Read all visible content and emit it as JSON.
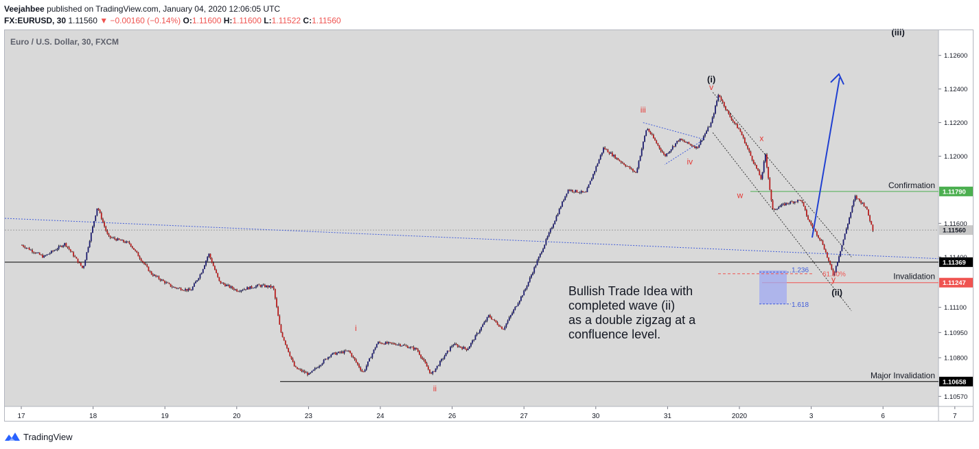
{
  "header": {
    "author": "Veejahbee",
    "published": "published on TradingView.com, January 04, 2020 12:06:05 UTC",
    "symbol": "FX:EURUSD, 30",
    "last": "1.11560",
    "change": "▼ −0.00160 (−0.14%)",
    "o_label": "O:",
    "o": "1.11600",
    "h_label": "H:",
    "h": "1.11600",
    "l_label": "L:",
    "l": "1.11522",
    "c_label": "C:",
    "c": "1.11560"
  },
  "chart_title": "Euro / U.S. Dollar, 30, FXCM",
  "chart_data": {
    "type": "candlestick",
    "y_ticks": [
      "1.12600",
      "1.12400",
      "1.12200",
      "1.12000",
      "1.11600",
      "1.11400",
      "1.11100",
      "1.10950",
      "1.10800",
      "1.10570"
    ],
    "ylim": [
      1.1051,
      1.1275
    ],
    "x_ticks": [
      "17",
      "18",
      "19",
      "20",
      "23",
      "24",
      "26",
      "27",
      "30",
      "31",
      "2020",
      "3",
      "6",
      "7"
    ],
    "price_path": [
      {
        "x": 0.0,
        "y": 1.1147
      },
      {
        "x": 0.3,
        "y": 1.114
      },
      {
        "x": 0.6,
        "y": 1.1148
      },
      {
        "x": 0.85,
        "y": 1.1133
      },
      {
        "x": 1.05,
        "y": 1.117
      },
      {
        "x": 1.2,
        "y": 1.1152
      },
      {
        "x": 1.5,
        "y": 1.1148
      },
      {
        "x": 1.8,
        "y": 1.113
      },
      {
        "x": 2.1,
        "y": 1.1122
      },
      {
        "x": 2.35,
        "y": 1.112
      },
      {
        "x": 2.5,
        "y": 1.1131
      },
      {
        "x": 2.6,
        "y": 1.1142
      },
      {
        "x": 2.75,
        "y": 1.1125
      },
      {
        "x": 3.0,
        "y": 1.112
      },
      {
        "x": 3.3,
        "y": 1.1123
      },
      {
        "x": 3.5,
        "y": 1.1122
      },
      {
        "x": 3.6,
        "y": 1.1096
      },
      {
        "x": 3.8,
        "y": 1.1074
      },
      {
        "x": 4.0,
        "y": 1.107
      },
      {
        "x": 4.3,
        "y": 1.1082
      },
      {
        "x": 4.55,
        "y": 1.1084
      },
      {
        "x": 4.75,
        "y": 1.1071
      },
      {
        "x": 4.95,
        "y": 1.1089
      },
      {
        "x": 5.25,
        "y": 1.1088
      },
      {
        "x": 5.5,
        "y": 1.1085
      },
      {
        "x": 5.7,
        "y": 1.107
      },
      {
        "x": 6.0,
        "y": 1.1088
      },
      {
        "x": 6.2,
        "y": 1.1085
      },
      {
        "x": 6.5,
        "y": 1.1105
      },
      {
        "x": 6.7,
        "y": 1.1097
      },
      {
        "x": 7.0,
        "y": 1.112
      },
      {
        "x": 7.3,
        "y": 1.115
      },
      {
        "x": 7.6,
        "y": 1.118
      },
      {
        "x": 7.85,
        "y": 1.1178
      },
      {
        "x": 8.1,
        "y": 1.1205
      },
      {
        "x": 8.3,
        "y": 1.1198
      },
      {
        "x": 8.55,
        "y": 1.119
      },
      {
        "x": 8.7,
        "y": 1.1217
      },
      {
        "x": 8.95,
        "y": 1.12
      },
      {
        "x": 9.15,
        "y": 1.121
      },
      {
        "x": 9.4,
        "y": 1.1205
      },
      {
        "x": 9.6,
        "y": 1.122
      },
      {
        "x": 9.7,
        "y": 1.1237
      },
      {
        "x": 9.85,
        "y": 1.1224
      },
      {
        "x": 10.0,
        "y": 1.1215
      },
      {
        "x": 10.15,
        "y": 1.12
      },
      {
        "x": 10.3,
        "y": 1.1186
      },
      {
        "x": 10.35,
        "y": 1.1202
      },
      {
        "x": 10.45,
        "y": 1.1168
      },
      {
        "x": 10.65,
        "y": 1.1172
      },
      {
        "x": 10.85,
        "y": 1.1174
      },
      {
        "x": 10.95,
        "y": 1.1162
      },
      {
        "x": 11.15,
        "y": 1.1148
      },
      {
        "x": 11.3,
        "y": 1.1129
      },
      {
        "x": 11.45,
        "y": 1.1152
      },
      {
        "x": 11.6,
        "y": 1.1176
      },
      {
        "x": 11.75,
        "y": 1.117
      },
      {
        "x": 11.85,
        "y": 1.1156
      }
    ],
    "horizontal_levels": [
      {
        "label": "Confirmation",
        "value": 1.1179,
        "value_label": "1.11790",
        "color": "#4caf50"
      },
      {
        "label": "",
        "value": 1.1156,
        "value_label": "1.11560",
        "color": "#9e9e9e"
      },
      {
        "label": "",
        "value": 1.11369,
        "value_label": "1.11369",
        "color": "#000000"
      },
      {
        "label": "Invalidation",
        "value": 1.11247,
        "value_label": "1.11247",
        "color": "#ef5350"
      },
      {
        "label": "Major Invalidation",
        "value": 1.10658,
        "value_label": "1.10658",
        "color": "#000000"
      }
    ],
    "wave_labels": [
      {
        "text": "(i)",
        "x": 9.6,
        "y": 1.1244,
        "color": "#131722"
      },
      {
        "text": "v",
        "x": 9.6,
        "y": 1.12395,
        "color": "#e53935"
      },
      {
        "text": "iii",
        "x": 8.65,
        "y": 1.1226,
        "color": "#e53935"
      },
      {
        "text": "iv",
        "x": 9.3,
        "y": 1.1195,
        "color": "#e53935"
      },
      {
        "text": "x",
        "x": 10.3,
        "y": 1.1209,
        "color": "#e53935"
      },
      {
        "text": "w",
        "x": 10.0,
        "y": 1.1175,
        "color": "#e53935"
      },
      {
        "text": "y",
        "x": 11.3,
        "y": 1.1125,
        "color": "#e53935"
      },
      {
        "text": "(ii)",
        "x": 11.35,
        "y": 1.1117,
        "color": "#131722"
      },
      {
        "text": "i",
        "x": 4.65,
        "y": 1.1096,
        "color": "#e53935"
      },
      {
        "text": "ii",
        "x": 5.75,
        "y": 1.106,
        "color": "#e53935"
      },
      {
        "text": "(iii)",
        "x": 12.2,
        "y": 1.1272,
        "color": "#131722"
      }
    ],
    "fib_labels": [
      {
        "text": "1.236",
        "y": 1.1131
      },
      {
        "text": "61.80%",
        "y": 1.113
      },
      {
        "text": "1.618",
        "y": 1.1112
      }
    ],
    "annotation": [
      "Bullish Trade Idea with",
      "completed wave (ii)",
      "as a double zigzag at a",
      "confluence level."
    ]
  },
  "footer": {
    "brand": "TradingView",
    "icon": "tradingview-logo-icon"
  },
  "colors": {
    "plot_bg": "#d9d9d9",
    "up": "#1a1a6e",
    "down": "#b71c1c",
    "arrow": "#1f3fd1",
    "fib_box": "#9fa8f0",
    "trend": "#3f5bd9"
  }
}
